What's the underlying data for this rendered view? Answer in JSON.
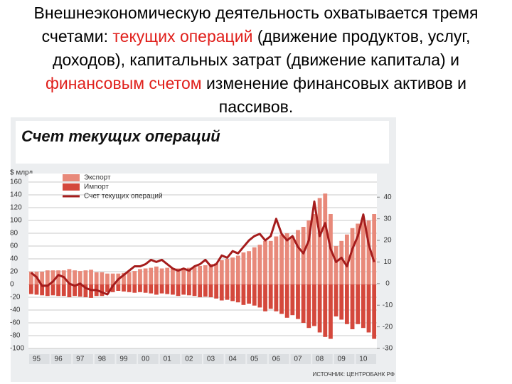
{
  "heading": {
    "parts": [
      {
        "text": "Внешнеэкономическую деятельность охватывается тремя счетами: ",
        "color": "#000000"
      },
      {
        "text": "текущих операций",
        "color": "#e0201c"
      },
      {
        "text": " (движение продуктов, услуг, доходов), капитальных затрат (движение капитала) и ",
        "color": "#000000"
      },
      {
        "text": "финансовым счетом",
        "color": "#e0201c"
      },
      {
        "text": " изменение финансовых активов и пассивов.",
        "color": "#000000"
      }
    ]
  },
  "chart_data": {
    "type": "bar_line",
    "title": "Счет текущих операций",
    "y_label": "$ млрд",
    "source": "ИСТОЧНИК: ЦЕНТРОБАНК РФ",
    "legend": "upper left",
    "grid": true,
    "categories": [
      "95",
      null,
      null,
      null,
      "96",
      null,
      null,
      null,
      "97",
      null,
      null,
      null,
      "98",
      null,
      null,
      null,
      "99",
      null,
      null,
      null,
      "00",
      null,
      null,
      null,
      "01",
      null,
      null,
      null,
      "02",
      null,
      null,
      null,
      "03",
      null,
      null,
      null,
      "04",
      null,
      null,
      null,
      "05",
      null,
      null,
      null,
      "06",
      null,
      null,
      null,
      "07",
      null,
      null,
      null,
      "08",
      null,
      null,
      null,
      "09",
      null,
      null,
      null,
      "10",
      null,
      null,
      null
    ],
    "ylim": [
      -100,
      160
    ],
    "yticks": [
      -100,
      -80,
      -60,
      -40,
      -20,
      0,
      20,
      40,
      60,
      80,
      100,
      120,
      140,
      160
    ],
    "y2lim": [
      -30,
      47
    ],
    "y2ticks": [
      -30,
      -20,
      -10,
      0,
      10,
      20,
      30,
      40
    ],
    "series": [
      {
        "name": "Экспорт",
        "color": "#e8897a",
        "values": [
          20,
          20,
          20,
          22,
          22,
          22,
          22,
          24,
          22,
          21,
          22,
          23,
          19,
          19,
          17,
          17,
          17,
          18,
          19,
          21,
          24,
          25,
          26,
          28,
          25,
          26,
          25,
          25,
          24,
          26,
          27,
          29,
          30,
          32,
          33,
          38,
          40,
          42,
          45,
          50,
          52,
          58,
          62,
          68,
          68,
          75,
          78,
          80,
          75,
          85,
          90,
          100,
          110,
          135,
          142,
          110,
          60,
          68,
          78,
          88,
          95,
          100,
          100,
          110
        ]
      },
      {
        "name": "Импорт",
        "color": "#d4483c",
        "values": [
          -15,
          -16,
          -17,
          -18,
          -17,
          -18,
          -18,
          -20,
          -18,
          -19,
          -20,
          -21,
          -18,
          -18,
          -12,
          -12,
          -10,
          -11,
          -12,
          -13,
          -12,
          -13,
          -14,
          -16,
          -14,
          -15,
          -16,
          -18,
          -16,
          -17,
          -18,
          -20,
          -19,
          -20,
          -22,
          -25,
          -24,
          -26,
          -28,
          -32,
          -30,
          -33,
          -36,
          -42,
          -38,
          -42,
          -46,
          -52,
          -48,
          -54,
          -60,
          -68,
          -65,
          -75,
          -82,
          -85,
          -50,
          -55,
          -62,
          -70,
          -62,
          -68,
          -75,
          -85
        ]
      },
      {
        "name": "Счет текущих операций",
        "color": "#a51c1c",
        "axis": "y2",
        "values": [
          5,
          3,
          -1,
          -1,
          1,
          4,
          3,
          0,
          -1,
          0,
          -2,
          -3,
          -3,
          -4,
          -5,
          -1,
          2,
          4,
          6,
          8,
          8,
          9,
          11,
          10,
          11,
          9,
          7,
          6,
          7,
          6,
          8,
          9,
          11,
          8,
          9,
          13,
          12,
          15,
          14,
          17,
          20,
          22,
          23,
          20,
          22,
          30,
          23,
          20,
          22,
          17,
          14,
          20,
          38,
          22,
          28,
          16,
          10,
          12,
          8,
          16,
          22,
          32,
          18,
          10
        ]
      }
    ]
  }
}
